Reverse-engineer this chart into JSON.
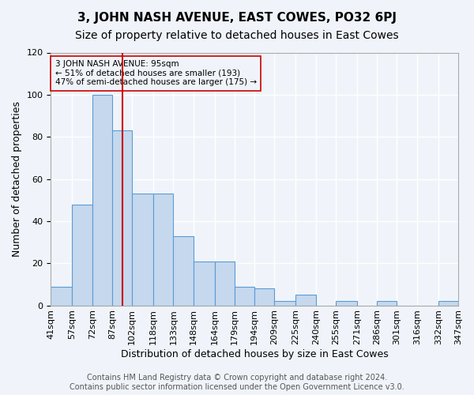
{
  "title": "3, JOHN NASH AVENUE, EAST COWES, PO32 6PJ",
  "subtitle": "Size of property relative to detached houses in East Cowes",
  "xlabel": "Distribution of detached houses by size in East Cowes",
  "ylabel": "Number of detached properties",
  "bar_values": [
    9,
    48,
    100,
    83,
    53,
    53,
    33,
    21,
    21,
    9,
    8,
    2,
    5,
    0,
    2,
    0,
    2,
    0,
    0,
    2
  ],
  "bin_labels": [
    "41sqm",
    "57sqm",
    "72sqm",
    "87sqm",
    "102sqm",
    "118sqm",
    "133sqm",
    "148sqm",
    "164sqm",
    "179sqm",
    "194sqm",
    "209sqm",
    "225sqm",
    "240sqm",
    "255sqm",
    "271sqm",
    "286sqm",
    "301sqm",
    "316sqm",
    "332sqm",
    "347sqm"
  ],
  "bar_color": "#c5d8ed",
  "bar_edge_color": "#5b9bd5",
  "bin_edges": [
    41,
    57,
    72,
    87,
    102,
    118,
    133,
    148,
    164,
    179,
    194,
    209,
    225,
    240,
    255,
    271,
    286,
    301,
    316,
    332,
    347
  ],
  "vline_x": 95,
  "vline_color": "#cc0000",
  "annotation_text_line1": "3 JOHN NASH AVENUE: 95sqm",
  "annotation_text_line2": "← 51% of detached houses are smaller (193)",
  "annotation_text_line3": "47% of semi-detached houses are larger (175) →",
  "annotation_box_color": "#cc0000",
  "ylim": [
    0,
    120
  ],
  "yticks": [
    0,
    20,
    40,
    60,
    80,
    100,
    120
  ],
  "footer_line1": "Contains HM Land Registry data © Crown copyright and database right 2024.",
  "footer_line2": "Contains public sector information licensed under the Open Government Licence v3.0.",
  "background_color": "#f0f4fa",
  "grid_color": "#ffffff",
  "title_fontsize": 11,
  "subtitle_fontsize": 10,
  "axis_label_fontsize": 9,
  "tick_fontsize": 8,
  "footer_fontsize": 7
}
